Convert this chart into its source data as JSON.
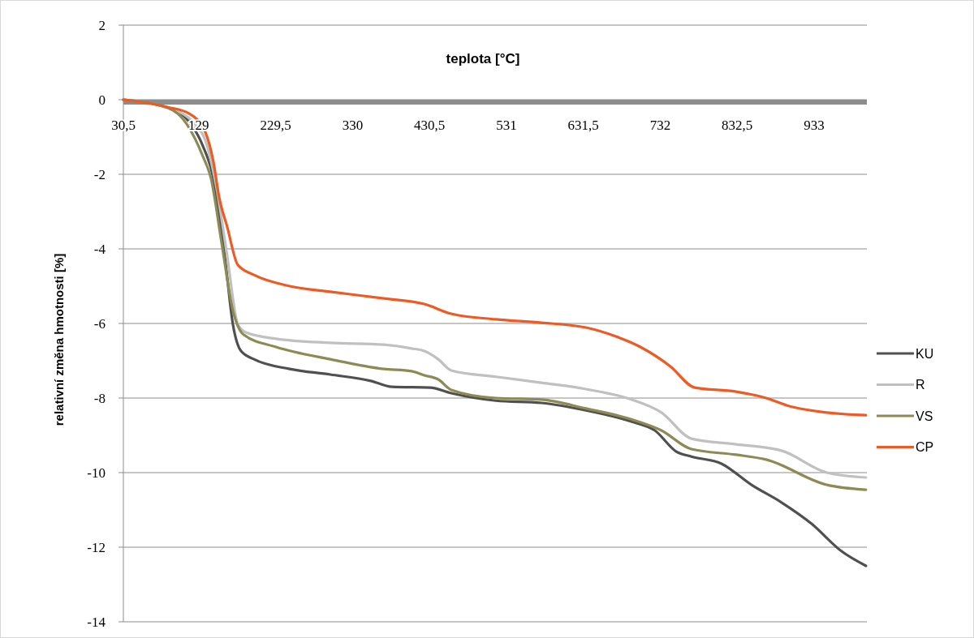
{
  "chart_data": {
    "type": "line",
    "xlabel": "teplota [°C]",
    "ylabel": "relativní změna hmotnosti [%]",
    "xlim": [
      30.5,
      1002
    ],
    "ylim": [
      -14,
      2
    ],
    "xticks": [
      {
        "value": 30.5,
        "label": "30,5"
      },
      129,
      {
        "value": 229.5,
        "label": "229,5"
      },
      330,
      {
        "value": 430.5,
        "label": "430,5"
      },
      531,
      {
        "value": 631.5,
        "label": "631,5"
      },
      732,
      {
        "value": 832.5,
        "label": "832,5"
      },
      933
    ],
    "yticks": [
      2,
      0,
      -2,
      -4,
      -6,
      -8,
      -10,
      -12,
      -14
    ],
    "grid": "y",
    "legend": "right",
    "line_style": "solid",
    "series": [
      {
        "name": "KU",
        "color": "#505050",
        "x": [
          30.5,
          88.8,
          116.4,
          134.4,
          148.2,
          163,
          173.6,
          184.3,
          201.2,
          247.9,
          300.9,
          353.9,
          381.5,
          431.3,
          458.9,
          517.2,
          576.6,
          634.9,
          694.3,
          725,
          752.6,
          772.8,
          812,
          851.3,
          890.5,
          929.7,
          969,
          1000.8
        ],
        "values": [
          0,
          -0.22,
          -0.59,
          -1.24,
          -2.11,
          -4.2,
          -6.02,
          -6.74,
          -6.96,
          -7.22,
          -7.37,
          -7.54,
          -7.7,
          -7.72,
          -7.87,
          -8.07,
          -8.13,
          -8.33,
          -8.63,
          -8.87,
          -9.43,
          -9.57,
          -9.76,
          -10.33,
          -10.8,
          -11.37,
          -12.11,
          -12.5
        ]
      },
      {
        "name": "R",
        "color": "#c0c0c0",
        "x": [
          30.5,
          88.8,
          123.8,
          137.6,
          152.5,
          166.2,
          180,
          190.6,
          229.9,
          300.9,
          370.9,
          406.9,
          423.9,
          441.9,
          458.9,
          517.2,
          576.6,
          634.9,
          694.3,
          733.6,
          772.8,
          831.1,
          890.5,
          949.9,
          1000.8
        ],
        "values": [
          0,
          -0.22,
          -0.65,
          -1.09,
          -2.39,
          -4.2,
          -6.02,
          -6.24,
          -6.41,
          -6.52,
          -6.57,
          -6.67,
          -6.74,
          -6.96,
          -7.26,
          -7.43,
          -7.59,
          -7.76,
          -8.04,
          -8.39,
          -9.09,
          -9.24,
          -9.41,
          -10.0,
          -10.13
        ]
      },
      {
        "name": "VS",
        "color": "#8c8a55",
        "x": [
          30.5,
          88.8,
          113.2,
          134.4,
          145,
          158.8,
          173.6,
          187.5,
          229.9,
          300.9,
          370.9,
          406.9,
          423.9,
          441.9,
          458.9,
          517.2,
          576.6,
          634.9,
          694.3,
          733.6,
          772.8,
          831.1,
          870.3,
          949.9,
          1000.8
        ],
        "values": [
          0,
          -0.22,
          -0.65,
          -1.52,
          -2.11,
          -3.83,
          -5.65,
          -6.3,
          -6.63,
          -6.96,
          -7.22,
          -7.28,
          -7.39,
          -7.5,
          -7.78,
          -8.0,
          -8.04,
          -8.28,
          -8.57,
          -8.87,
          -9.37,
          -9.52,
          -9.65,
          -10.33,
          -10.46
        ]
      },
      {
        "name": "CP",
        "color": "#ee5a24",
        "x": [
          30.5,
          88.8,
          116.4,
          137.6,
          148.2,
          155.6,
          166.2,
          180,
          201.2,
          247.9,
          300.9,
          370.9,
          423.9,
          458.9,
          517.2,
          576.6,
          634.9,
          674.2,
          706,
          745.2,
          777,
          831.1,
          870.3,
          897.9,
          949.9,
          1000.8
        ],
        "values": [
          0,
          -0.2,
          -0.37,
          -0.87,
          -1.67,
          -2.61,
          -3.41,
          -4.43,
          -4.7,
          -5.0,
          -5.15,
          -5.33,
          -5.48,
          -5.74,
          -5.89,
          -5.98,
          -6.11,
          -6.35,
          -6.63,
          -7.15,
          -7.72,
          -7.83,
          -8.0,
          -8.2,
          -8.39,
          -8.46
        ]
      }
    ]
  }
}
